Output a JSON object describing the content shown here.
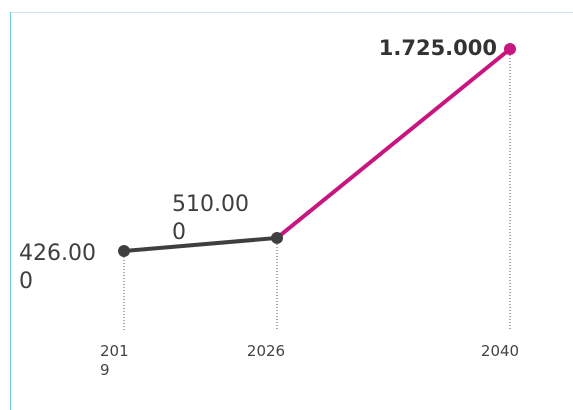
{
  "chart_data": {
    "type": "line",
    "x": [
      "2019",
      "2026",
      "2040"
    ],
    "values": [
      426000,
      510000,
      1725000
    ],
    "value_labels": [
      "426.000",
      "510.000",
      "1.725.000"
    ],
    "tick_labels": [
      "2019",
      "2026",
      "2040"
    ],
    "ylim": [
      0,
      1800000
    ],
    "grid": false,
    "segments": [
      {
        "from": 0,
        "to": 1,
        "color": "#3f3f3f"
      },
      {
        "from": 1,
        "to": 2,
        "color": "#c8157f"
      }
    ],
    "point_colors": [
      "#3f3f3f",
      "#3f3f3f",
      "#c8157f"
    ]
  }
}
